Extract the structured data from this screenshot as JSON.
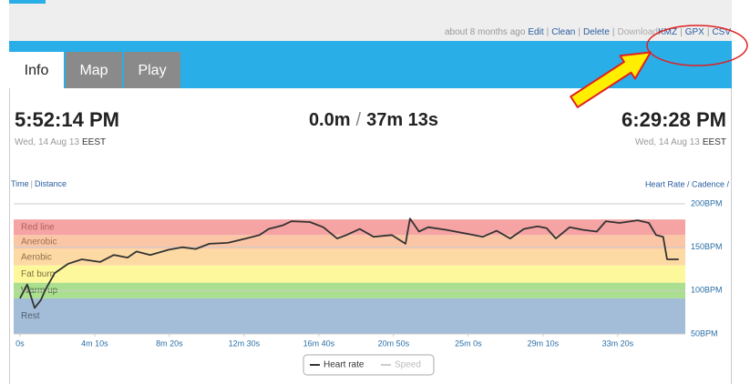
{
  "header": {
    "ago": "about 8 months ago",
    "links": [
      "Edit",
      "Clean",
      "Delete"
    ],
    "download_label": "Download",
    "downloads": [
      "KMZ",
      "GPX",
      "CSV"
    ],
    "separator": "|"
  },
  "tabs": [
    "Info",
    "Map",
    "Play"
  ],
  "start": {
    "time": "5:52:14 PM",
    "date": "Wed, 14 Aug 13",
    "tz": "EEST"
  },
  "summary": {
    "distance": "0.0m",
    "separator": "/",
    "duration": "37m 13s"
  },
  "end": {
    "time": "6:29:28 PM",
    "date": "Wed, 14 Aug 13",
    "tz": "EEST"
  },
  "chart_controls": {
    "left": [
      "Time",
      "Distance"
    ],
    "separator": "|",
    "right": "Heart Rate / Cadence /"
  },
  "chart_data": {
    "type": "line",
    "x": [
      0,
      24,
      49,
      70,
      85,
      116,
      162,
      207,
      268,
      314,
      360,
      390,
      436,
      497,
      543,
      588,
      634,
      695,
      756,
      802,
      832,
      878,
      909,
      970,
      1015,
      1061,
      1092,
      1137,
      1183,
      1244,
      1290,
      1305,
      1335,
      1366,
      1427,
      1488,
      1549,
      1595,
      1640,
      1686,
      1732,
      1762,
      1793,
      1839,
      1884,
      1930,
      1960,
      2006,
      2067,
      2104,
      2128,
      2152,
      2165,
      2204
    ],
    "series": [
      {
        "name": "Heart rate",
        "color": "#333333",
        "values": [
          91,
          107,
          80,
          89,
          101,
          120,
          131,
          136,
          133,
          141,
          138,
          145,
          141,
          147,
          150,
          148,
          154,
          155,
          160,
          164,
          171,
          175,
          180,
          179,
          173,
          160,
          164,
          171,
          162,
          164,
          154,
          183,
          168,
          173,
          170,
          166,
          162,
          169,
          160,
          171,
          174,
          172,
          160,
          173,
          170,
          168,
          180,
          178,
          181,
          178,
          164,
          162,
          136,
          136
        ]
      }
    ],
    "inactive_series": [
      {
        "name": "Speed",
        "color": "#cccccc"
      }
    ],
    "zones": [
      {
        "name": "Red line",
        "from": 164,
        "to": 182,
        "color": "#f5a3a3",
        "label_color": "#b06060"
      },
      {
        "name": "Anerobic",
        "from": 148,
        "to": 164,
        "color": "#fbc6a6",
        "label_color": "#a07050"
      },
      {
        "name": "Aerobic",
        "from": 129,
        "to": 148,
        "color": "#fddaa3",
        "label_color": "#907050"
      },
      {
        "name": "Fat burn",
        "from": 109,
        "to": 129,
        "color": "#fdf89c",
        "label_color": "#807040"
      },
      {
        "name": "Warm up",
        "from": 91,
        "to": 109,
        "color": "#a9df8e",
        "label_color": "#507040"
      },
      {
        "name": "Rest",
        "from": 50,
        "to": 91,
        "color": "#a3bdd8",
        "label_color": "#506070"
      }
    ],
    "xlim": [
      -21,
      2226
    ],
    "xticks": [
      {
        "value": 0,
        "label": "0s"
      },
      {
        "value": 250,
        "label": "4m 10s"
      },
      {
        "value": 500,
        "label": "8m 20s"
      },
      {
        "value": 750,
        "label": "12m 30s"
      },
      {
        "value": 1000,
        "label": "16m 40s"
      },
      {
        "value": 1250,
        "label": "20m 50s"
      },
      {
        "value": 1500,
        "label": "25m 0s"
      },
      {
        "value": 1750,
        "label": "29m 10s"
      },
      {
        "value": 2000,
        "label": "33m 20s"
      }
    ],
    "ylim": [
      50,
      200
    ],
    "yticks": [
      {
        "value": 200,
        "label": "200BPM"
      },
      {
        "value": 150,
        "label": "150BPM"
      },
      {
        "value": 100,
        "label": "100BPM"
      },
      {
        "value": 50,
        "label": "50BPM"
      }
    ],
    "grid": true
  }
}
